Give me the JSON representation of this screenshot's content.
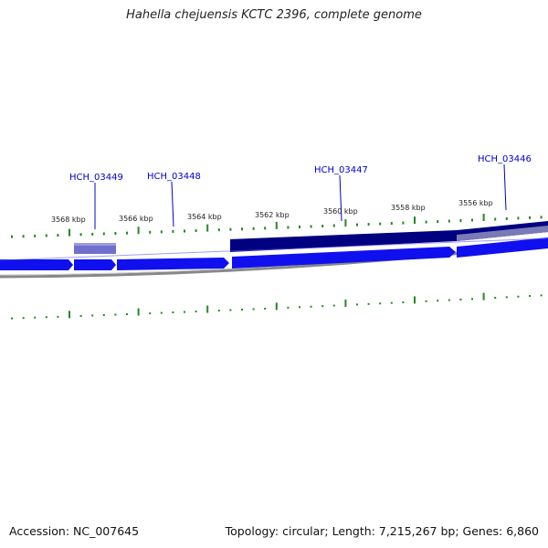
{
  "header": {
    "title": "Hahella chejuensis KCTC 2396, complete genome"
  },
  "footer": {
    "accession": "Accession: NC_007645",
    "summary": "Topology: circular; Length: 7,215,267 bp; Genes: 6,860"
  },
  "ruler": {
    "labels": [
      "3568 kbp",
      "3566 kbp",
      "3564 kbp",
      "3562 kbp",
      "3560 kbp",
      "3558 kbp",
      "3556 kbp"
    ]
  },
  "genes": [
    {
      "label": "HCH_03449"
    },
    {
      "label": "HCH_03448"
    },
    {
      "label": "HCH_03447"
    },
    {
      "label": "HCH_03446"
    }
  ],
  "colors": {
    "forward_gene": "#1010ee",
    "reverse_gene": "#000080",
    "reverse_gene_light": "#7070cc",
    "tick": "#228822",
    "backbone": "#888888",
    "gene_label": "#0000cc"
  }
}
